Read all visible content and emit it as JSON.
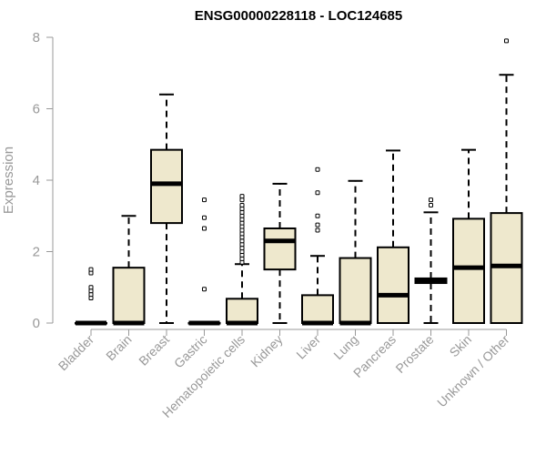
{
  "chart_data": {
    "type": "boxplot",
    "title": "ENSG00000228118 - LOC124685",
    "xlabel": "",
    "ylabel": "Expression",
    "ylim": [
      0,
      8
    ],
    "yticks": [
      0,
      2,
      4,
      6,
      8
    ],
    "grid": false,
    "box_fill": "#EEE8CD",
    "categories": [
      "Bladder",
      "Brain",
      "Breast",
      "Gastric",
      "Hematopoietic cells",
      "Kidney",
      "Liver",
      "Lung",
      "Pancreas",
      "Prostate",
      "Skin",
      "Unknown / Other"
    ],
    "boxes": [
      {
        "whisker_low": 0,
        "q1": 0,
        "median": 0,
        "q3": 0,
        "whisker_high": 0,
        "outliers": [
          0.7,
          0.8,
          0.9,
          1.0,
          1.4,
          1.5
        ]
      },
      {
        "whisker_low": 0,
        "q1": 0,
        "median": 0,
        "q3": 1.55,
        "whisker_high": 3.0,
        "outliers": []
      },
      {
        "whisker_low": 0,
        "q1": 2.8,
        "median": 3.9,
        "q3": 4.85,
        "whisker_high": 6.4,
        "outliers": []
      },
      {
        "whisker_low": 0,
        "q1": 0,
        "median": 0,
        "q3": 0,
        "whisker_high": 0,
        "outliers": [
          0.95,
          2.65,
          2.95,
          3.45
        ]
      },
      {
        "whisker_low": 0,
        "q1": 0,
        "median": 0,
        "q3": 0.68,
        "whisker_high": 1.65,
        "outliers": [
          1.7,
          1.8,
          1.9,
          2.0,
          2.1,
          2.2,
          2.3,
          2.4,
          2.5,
          2.6,
          2.7,
          2.8,
          2.9,
          3.0,
          3.1,
          3.2,
          3.3,
          3.45,
          3.55
        ]
      },
      {
        "whisker_low": 0,
        "q1": 1.5,
        "median": 2.3,
        "q3": 2.65,
        "whisker_high": 3.9,
        "outliers": []
      },
      {
        "whisker_low": 0,
        "q1": 0,
        "median": 0,
        "q3": 0.78,
        "whisker_high": 1.88,
        "outliers": [
          2.6,
          2.75,
          3.0,
          3.65,
          4.3
        ]
      },
      {
        "whisker_low": 0,
        "q1": 0,
        "median": 0,
        "q3": 1.82,
        "whisker_high": 3.98,
        "outliers": []
      },
      {
        "whisker_low": 0,
        "q1": 0,
        "median": 0.78,
        "q3": 2.12,
        "whisker_high": 4.83,
        "outliers": []
      },
      {
        "whisker_low": 0,
        "q1": 1.12,
        "median": 1.2,
        "q3": 1.25,
        "whisker_high": 3.1,
        "outliers": [
          3.3,
          3.45
        ]
      },
      {
        "whisker_low": 0,
        "q1": 0,
        "median": 1.55,
        "q3": 2.92,
        "whisker_high": 4.85,
        "outliers": []
      },
      {
        "whisker_low": 0,
        "q1": 0,
        "median": 1.6,
        "q3": 3.08,
        "whisker_high": 6.95,
        "outliers": [
          7.9
        ]
      }
    ]
  }
}
